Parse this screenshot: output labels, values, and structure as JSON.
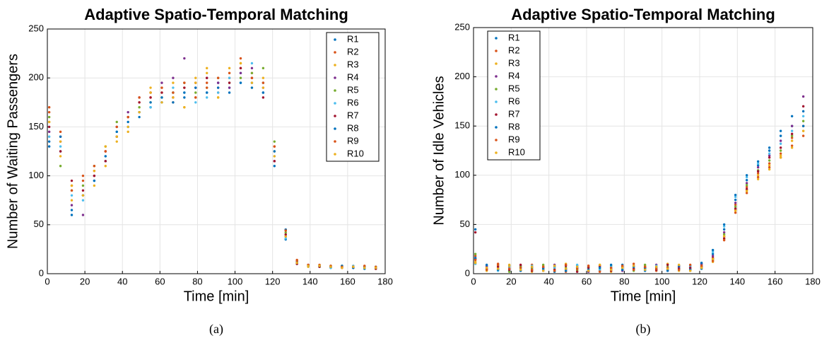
{
  "chart_data": [
    {
      "type": "scatter",
      "title": "Adaptive Spatio-Temporal Matching",
      "xlabel": "Time [min]",
      "ylabel": "Number of Waiting Passengers",
      "caption": "(a)",
      "xlim": [
        0,
        180
      ],
      "ylim": [
        0,
        250
      ],
      "xticks": [
        0,
        20,
        40,
        60,
        80,
        100,
        120,
        140,
        160,
        180
      ],
      "yticks": [
        0,
        50,
        100,
        150,
        200,
        250
      ],
      "grid": true,
      "legend": "top right",
      "x": [
        1,
        7,
        13,
        19,
        25,
        31,
        37,
        43,
        49,
        55,
        61,
        67,
        73,
        79,
        85,
        91,
        97,
        103,
        109,
        115,
        121,
        127,
        133,
        139,
        145,
        151,
        157,
        163,
        169,
        175
      ],
      "series": [
        {
          "name": "R1",
          "color": "#0072bd",
          "values": [
            135,
            125,
            60,
            80,
            95,
            115,
            140,
            150,
            160,
            170,
            175,
            185,
            180,
            190,
            185,
            195,
            190,
            205,
            195,
            185,
            110,
            35,
            10,
            8,
            7,
            6,
            8,
            6,
            5,
            7
          ]
        },
        {
          "name": "R2",
          "color": "#d95319",
          "values": [
            165,
            140,
            90,
            95,
            105,
            125,
            150,
            160,
            175,
            180,
            190,
            175,
            190,
            180,
            195,
            185,
            200,
            210,
            205,
            195,
            130,
            45,
            14,
            9,
            8,
            8,
            7,
            8,
            7,
            6
          ]
        },
        {
          "name": "R3",
          "color": "#edb120",
          "values": [
            155,
            120,
            75,
            80,
            90,
            110,
            135,
            145,
            165,
            190,
            185,
            195,
            170,
            200,
            210,
            180,
            205,
            215,
            190,
            200,
            125,
            40,
            12,
            7,
            9,
            7,
            6,
            7,
            8,
            5
          ]
        },
        {
          "name": "R4",
          "color": "#7e2f8e",
          "values": [
            145,
            135,
            70,
            60,
            100,
            125,
            150,
            165,
            180,
            185,
            195,
            200,
            220,
            190,
            200,
            195,
            190,
            205,
            210,
            190,
            115,
            38,
            11,
            9,
            8,
            7,
            7,
            6,
            7,
            6
          ]
        },
        {
          "name": "R5",
          "color": "#77ac30",
          "values": [
            160,
            110,
            85,
            90,
            110,
            130,
            155,
            160,
            170,
            175,
            180,
            185,
            195,
            185,
            190,
            200,
            195,
            200,
            205,
            210,
            135,
            42,
            13,
            8,
            7,
            8,
            8,
            7,
            6,
            7
          ]
        },
        {
          "name": "R6",
          "color": "#4dbeee",
          "values": [
            140,
            130,
            80,
            75,
            95,
            120,
            145,
            150,
            165,
            170,
            175,
            190,
            185,
            175,
            180,
            185,
            200,
            195,
            215,
            195,
            120,
            36,
            12,
            8,
            8,
            6,
            7,
            8,
            6,
            6
          ]
        },
        {
          "name": "R7",
          "color": "#a2142f",
          "values": [
            150,
            125,
            95,
            85,
            100,
            115,
            140,
            160,
            175,
            180,
            185,
            180,
            190,
            195,
            200,
            190,
            195,
            210,
            200,
            180,
            115,
            40,
            10,
            9,
            7,
            7,
            6,
            7,
            7,
            5
          ]
        },
        {
          "name": "R8",
          "color": "#0072bd",
          "values": [
            130,
            140,
            65,
            80,
            95,
            120,
            145,
            155,
            165,
            175,
            180,
            175,
            185,
            190,
            185,
            190,
            185,
            195,
            190,
            185,
            125,
            45,
            12,
            8,
            8,
            7,
            8,
            6,
            7,
            6
          ]
        },
        {
          "name": "R9",
          "color": "#d95319",
          "values": [
            170,
            145,
            85,
            100,
            110,
            125,
            150,
            160,
            180,
            185,
            190,
            185,
            195,
            180,
            190,
            200,
            205,
            220,
            200,
            195,
            130,
            44,
            13,
            9,
            9,
            8,
            7,
            7,
            8,
            7
          ]
        },
        {
          "name": "R10",
          "color": "#edb120",
          "values": [
            155,
            135,
            90,
            80,
            105,
            130,
            140,
            150,
            165,
            185,
            175,
            180,
            170,
            195,
            205,
            180,
            210,
            215,
            195,
            190,
            120,
            38,
            11,
            8,
            8,
            7,
            6,
            7,
            6,
            6
          ]
        }
      ]
    },
    {
      "type": "scatter",
      "title": "Adaptive Spatio-Temporal Matching",
      "xlabel": "Time [min]",
      "ylabel": "Number of Idle Vehicles",
      "caption": "(b)",
      "xlim": [
        0,
        180
      ],
      "ylim": [
        0,
        250
      ],
      "xticks": [
        0,
        20,
        40,
        60,
        80,
        100,
        120,
        140,
        160,
        180
      ],
      "yticks": [
        0,
        50,
        100,
        150,
        200,
        250
      ],
      "grid": true,
      "legend": "top left",
      "x": [
        1,
        7,
        13,
        19,
        25,
        31,
        37,
        43,
        49,
        55,
        61,
        67,
        73,
        79,
        85,
        91,
        97,
        103,
        109,
        115,
        121,
        127,
        133,
        139,
        145,
        151,
        157,
        163,
        169,
        175
      ],
      "series": [
        {
          "name": "R1",
          "color": "#0072bd",
          "values": [
            45,
            8,
            5,
            3,
            6,
            4,
            7,
            2,
            5,
            8,
            3,
            6,
            4,
            9,
            5,
            3,
            7,
            4,
            6,
            8,
            5,
            20,
            45,
            75,
            95,
            110,
            125,
            140,
            150,
            165
          ]
        },
        {
          "name": "R2",
          "color": "#d95319",
          "values": [
            18,
            5,
            10,
            6,
            3,
            9,
            4,
            7,
            2,
            5,
            8,
            3,
            6,
            4,
            10,
            7,
            3,
            5,
            8,
            4,
            9,
            15,
            38,
            70,
            88,
            102,
            112,
            122,
            138,
            150
          ]
        },
        {
          "name": "R3",
          "color": "#edb120",
          "values": [
            12,
            3,
            6,
            9,
            4,
            2,
            8,
            5,
            10,
            3,
            6,
            9,
            2,
            7,
            4,
            8,
            5,
            10,
            3,
            6,
            7,
            12,
            35,
            65,
            85,
            100,
            110,
            120,
            135,
            145
          ]
        },
        {
          "name": "R4",
          "color": "#7e2f8e",
          "values": [
            15,
            7,
            4,
            5,
            8,
            6,
            3,
            9,
            4,
            6,
            2,
            7,
            5,
            3,
            8,
            6,
            9,
            3,
            7,
            5,
            10,
            18,
            42,
            72,
            92,
            108,
            120,
            135,
            150,
            180
          ]
        },
        {
          "name": "R5",
          "color": "#77ac30",
          "values": [
            20,
            4,
            8,
            2,
            7,
            5,
            9,
            3,
            6,
            4,
            7,
            5,
            8,
            6,
            3,
            9,
            4,
            7,
            5,
            3,
            6,
            14,
            40,
            68,
            90,
            105,
            115,
            125,
            140,
            155
          ]
        },
        {
          "name": "R6",
          "color": "#4dbeee",
          "values": [
            10,
            6,
            3,
            7,
            5,
            8,
            4,
            6,
            3,
            9,
            5,
            4,
            7,
            5,
            6,
            4,
            8,
            6,
            4,
            7,
            8,
            22,
            48,
            78,
            98,
            112,
            122,
            132,
            145,
            160
          ]
        },
        {
          "name": "R7",
          "color": "#a2142f",
          "values": [
            42,
            5,
            7,
            4,
            9,
            3,
            6,
            4,
            8,
            2,
            6,
            8,
            3,
            7,
            5,
            6,
            4,
            9,
            5,
            6,
            7,
            16,
            36,
            66,
            86,
            104,
            118,
            128,
            142,
            170
          ]
        },
        {
          "name": "R8",
          "color": "#0072bd",
          "values": [
            16,
            9,
            4,
            8,
            3,
            7,
            5,
            8,
            3,
            6,
            4,
            6,
            9,
            4,
            7,
            5,
            6,
            3,
            8,
            4,
            11,
            24,
            50,
            80,
            100,
            114,
            128,
            145,
            160,
            150
          ]
        },
        {
          "name": "R9",
          "color": "#d95319",
          "values": [
            14,
            4,
            9,
            5,
            6,
            4,
            7,
            3,
            9,
            5,
            8,
            2,
            6,
            8,
            4,
            7,
            5,
            6,
            4,
            9,
            8,
            13,
            34,
            62,
            82,
            98,
            108,
            118,
            130,
            140
          ]
        },
        {
          "name": "R10",
          "color": "#edb120",
          "values": [
            11,
            6,
            5,
            8,
            4,
            7,
            3,
            8,
            5,
            7,
            3,
            9,
            4,
            6,
            8,
            4,
            7,
            5,
            9,
            3,
            6,
            15,
            38,
            64,
            84,
            96,
            106,
            118,
            128,
            145
          ]
        }
      ]
    }
  ]
}
